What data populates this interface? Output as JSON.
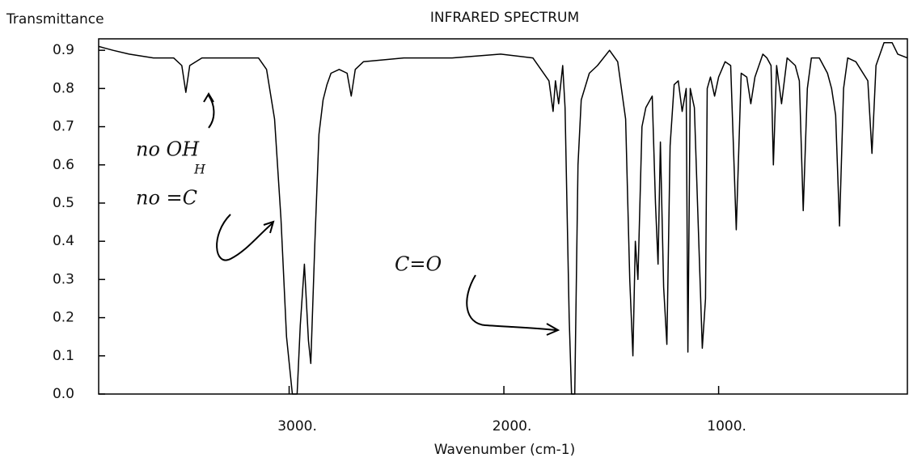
{
  "chart_data": {
    "type": "line",
    "title": "INFRARED SPECTRUM",
    "y_label": "Transmittance",
    "x_label": "Wavenumber (cm-1)",
    "color": "#000000",
    "x": [
      3887,
      3820,
      3745,
      3632,
      3538,
      3500,
      3481,
      3463,
      3406,
      3218,
      3143,
      3105,
      3068,
      3038,
      3012,
      2985,
      2963,
      2948,
      2929,
      2910,
      2899,
      2880,
      2861,
      2842,
      2824,
      2805,
      2767,
      2730,
      2711,
      2692,
      2654,
      2466,
      2241,
      2015,
      1865,
      1790,
      1771,
      1760,
      1745,
      1726,
      1715,
      1696,
      1685,
      1670,
      1655,
      1640,
      1602,
      1564,
      1508,
      1470,
      1433,
      1414,
      1399,
      1388,
      1376,
      1357,
      1339,
      1309,
      1294,
      1282,
      1271,
      1256,
      1241,
      1226,
      1207,
      1188,
      1170,
      1151,
      1143,
      1132,
      1113,
      1076,
      1061,
      1053,
      1038,
      1019,
      1000,
      970,
      944,
      918,
      895,
      869,
      850,
      831,
      794,
      775,
      756,
      745,
      730,
      707,
      681,
      643,
      624,
      606,
      587,
      568,
      531,
      493,
      474,
      455,
      437,
      418,
      399,
      361,
      305,
      286,
      267,
      230,
      192,
      166,
      121
    ],
    "values": [
      0.91,
      0.9,
      0.89,
      0.88,
      0.88,
      0.86,
      0.79,
      0.86,
      0.88,
      0.88,
      0.88,
      0.85,
      0.72,
      0.46,
      0.15,
      0.0,
      0.0,
      0.18,
      0.34,
      0.14,
      0.08,
      0.4,
      0.68,
      0.77,
      0.81,
      0.84,
      0.85,
      0.84,
      0.78,
      0.85,
      0.87,
      0.88,
      0.88,
      0.89,
      0.88,
      0.82,
      0.74,
      0.82,
      0.76,
      0.86,
      0.75,
      0.2,
      0.0,
      0.0,
      0.6,
      0.77,
      0.84,
      0.86,
      0.9,
      0.87,
      0.72,
      0.3,
      0.1,
      0.4,
      0.3,
      0.7,
      0.75,
      0.78,
      0.5,
      0.34,
      0.66,
      0.28,
      0.13,
      0.65,
      0.81,
      0.82,
      0.74,
      0.8,
      0.11,
      0.8,
      0.75,
      0.12,
      0.25,
      0.8,
      0.83,
      0.78,
      0.83,
      0.87,
      0.86,
      0.43,
      0.84,
      0.83,
      0.76,
      0.83,
      0.89,
      0.88,
      0.86,
      0.6,
      0.86,
      0.76,
      0.88,
      0.86,
      0.82,
      0.48,
      0.8,
      0.88,
      0.88,
      0.84,
      0.8,
      0.73,
      0.44,
      0.8,
      0.88,
      0.87,
      0.82,
      0.63,
      0.86,
      0.92,
      0.92,
      0.89,
      0.88
    ],
    "xlim": [
      3887,
      121
    ],
    "ylim": [
      0,
      0.93
    ],
    "xticks": [
      {
        "value": 3000,
        "label": "3000."
      },
      {
        "value": 2000,
        "label": "2000."
      },
      {
        "value": 1000,
        "label": "1000."
      }
    ],
    "yticks": [
      {
        "value": 0,
        "label": "0.0"
      },
      0.1,
      0.2,
      0.3,
      0.4,
      0.5,
      0.6,
      0.7,
      0.8,
      0.9
    ],
    "annotations": [
      "no OH",
      "no =C",
      "H",
      "C=O"
    ]
  }
}
